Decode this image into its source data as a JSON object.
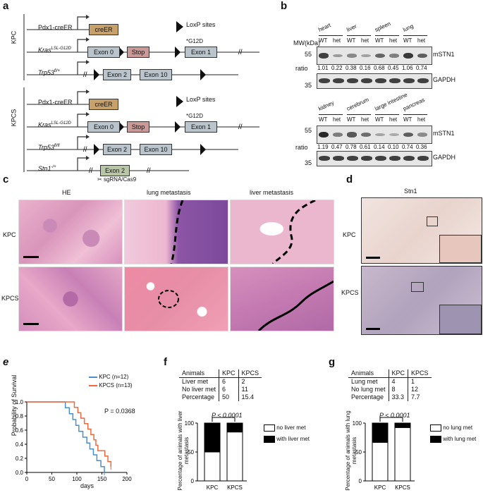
{
  "panels": {
    "a": "a",
    "b": "b",
    "c": "c",
    "d": "d",
    "e": "e",
    "f": "f",
    "g": "g"
  },
  "panel_a": {
    "group_kpc": "KPC",
    "group_kpcs": "KPCS",
    "pdx1": "Pdx1-creER",
    "creer": "creER",
    "loxp": "LoxP sites",
    "kras_base": "Kras",
    "kras_sup": "LSL-G12D",
    "trp53_base": "Trp53",
    "trp53_sup": "fl/+",
    "trp53_sup2": "fl/fl",
    "stn1_base": "Stn1",
    "stn1_sup": "-/+",
    "exon0": "Exon 0",
    "stop": "Stop",
    "exon1": "Exon 1",
    "exon2": "Exon 2",
    "exon10": "Exon 10",
    "g12d": "*G12D",
    "sgrna": "sgRNA/Cas9"
  },
  "panel_b": {
    "mw": "MW(kDa)",
    "m55": "55",
    "m35": "35",
    "ratio": "ratio",
    "mstn1": "mSTN1",
    "gapdh": "GAPDH",
    "wt": "WT",
    "het": "het",
    "top_tissues": [
      "heart",
      "liver",
      "spleen",
      "lung"
    ],
    "top_ratios": [
      "1.01",
      "0.22",
      "0.38",
      "0.16",
      "0.68",
      "0.45",
      "1.06",
      "0.74"
    ],
    "bottom_tissues": [
      "kidney",
      "cerebrum",
      "large intestine",
      "pancreas"
    ],
    "bottom_ratios": [
      "1.19",
      "0.47",
      "0.78",
      "0.61",
      "0.14",
      "0.10",
      "0.74",
      "0.36"
    ]
  },
  "panel_c": {
    "col_he": "HE",
    "col_lung": "lung metastasis",
    "col_liver": "liver metastasis",
    "row_kpc": "KPC",
    "row_kpcs": "KPCS"
  },
  "panel_d": {
    "title": "Stn1",
    "row_kpc": "KPC",
    "row_kpcs": "KPCS"
  },
  "colors": {
    "he_pink": "#e8a7c4",
    "he_purple": "#8a4fa0",
    "ihc_bg": "#efe0dc",
    "kpc_line": "#4a8fd1",
    "kpcs_line": "#f2683c",
    "creer_box": "#c8a06a",
    "stop_box": "#c99a97",
    "exon_box": "#b9c4cc",
    "exon2_stn1": "#b9c6a5"
  },
  "chart_e": {
    "type": "line",
    "ylabel": "Probability of Survival",
    "xlabel": "days",
    "xticks": [
      "0",
      "50",
      "100",
      "150",
      "200"
    ],
    "yticks": [
      "0.0",
      "0.2",
      "0.4",
      "0.6",
      "0.8",
      "1.0"
    ],
    "xlim": [
      0,
      200
    ],
    "ylim": [
      0,
      1
    ],
    "pvalue": "P = 0.0368",
    "series": [
      {
        "name": "KPC (n=12)",
        "color": "#4a8fd1",
        "x": [
          0,
          72,
          77,
          85,
          92,
          98,
          104,
          112,
          120,
          126,
          133,
          140,
          148,
          155
        ],
        "y": [
          1.0,
          1.0,
          0.917,
          0.833,
          0.75,
          0.667,
          0.583,
          0.5,
          0.417,
          0.333,
          0.25,
          0.167,
          0.083,
          0.0
        ]
      },
      {
        "name": "KPCS (n=13)",
        "color": "#f2683c",
        "x": [
          0,
          90,
          95,
          102,
          108,
          115,
          122,
          128,
          134,
          138,
          142,
          156,
          162,
          168
        ],
        "y": [
          1.0,
          1.0,
          0.923,
          0.846,
          0.769,
          0.692,
          0.615,
          0.538,
          0.462,
          0.385,
          0.308,
          0.231,
          0.154,
          0.077
        ]
      }
    ]
  },
  "panel_f": {
    "table": {
      "header": [
        "Animals",
        "KPC",
        "KPCS"
      ],
      "rows": [
        [
          "Liver met",
          "6",
          "2"
        ],
        [
          "No liver met",
          "6",
          "11"
        ],
        [
          "Percentage",
          "50",
          "15.4"
        ]
      ]
    },
    "chart_data": {
      "type": "bar",
      "categories": [
        "KPC",
        "KPCS"
      ],
      "series": [
        {
          "name": "no liver met",
          "values": [
            50,
            84.6
          ]
        },
        {
          "name": "with liver met",
          "values": [
            50,
            15.4
          ]
        }
      ],
      "ylabel": "Percentage of animals with liver metastasis",
      "yticks": [
        "0",
        "50",
        "100"
      ],
      "ylim": [
        0,
        100
      ],
      "pvalue": "P < 0.0001"
    }
  },
  "panel_g": {
    "table": {
      "header": [
        "Animals",
        "KPC",
        "KPCS"
      ],
      "rows": [
        [
          "Lung met",
          "4",
          "1"
        ],
        [
          "No lung met",
          "8",
          "12"
        ],
        [
          "Percentage",
          "33.3",
          "7.7"
        ]
      ]
    },
    "chart_data": {
      "type": "bar",
      "categories": [
        "KPC",
        "KPCS"
      ],
      "series": [
        {
          "name": "no lung met",
          "values": [
            66.7,
            92.3
          ]
        },
        {
          "name": "with lung met",
          "values": [
            33.3,
            7.7
          ]
        }
      ],
      "ylabel": "Percentage of animals with lung metastasis",
      "yticks": [
        "0",
        "50",
        "100"
      ],
      "ylim": [
        0,
        100
      ],
      "pvalue": "P < 0.0001"
    }
  }
}
